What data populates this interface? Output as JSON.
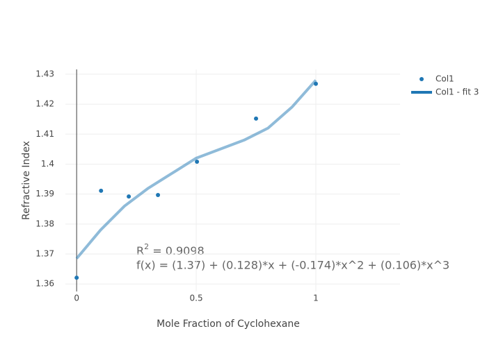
{
  "chart_data": {
    "type": "scatter",
    "xlabel": "Mole Fraction of Cyclohexane",
    "ylabel": "Refractive Index",
    "xlim": [
      -0.047,
      1.352
    ],
    "ylim": [
      1.3575,
      1.4316
    ],
    "xticks": [
      0,
      0.5,
      1
    ],
    "yticks": [
      1.36,
      1.37,
      1.38,
      1.39,
      1.4,
      1.41,
      1.42,
      1.43
    ],
    "grid": true,
    "zeroline": true,
    "legend": "top-right",
    "series": [
      {
        "name": "Col1",
        "color": "#1f77b4",
        "mode": "markers",
        "x": [
          0,
          0.102,
          0.218,
          0.34,
          0.503,
          0.75,
          1.0
        ],
        "values": [
          1.3621,
          1.3911,
          1.3892,
          1.3897,
          1.4008,
          1.4152,
          1.4268
        ]
      },
      {
        "name": "Col1 - fit 3",
        "color": "#1f77b4",
        "mode": "lines",
        "opacity": 0.5,
        "x": [
          0,
          0.1,
          0.2,
          0.3,
          0.4,
          0.5,
          0.6,
          0.7,
          0.8,
          0.9,
          1.0
        ],
        "values": [
          1.3685,
          1.378,
          1.386,
          1.392,
          1.397,
          1.402,
          1.405,
          1.408,
          1.412,
          1.419,
          1.428
        ]
      }
    ],
    "annotation": {
      "r_base": "R",
      "r_sup": "2",
      "r_rest": " = 0.9098",
      "formula": "f(x) = (1.37) + (0.128)*x + (-0.174)*x^2 + (0.106)*x^3"
    }
  }
}
